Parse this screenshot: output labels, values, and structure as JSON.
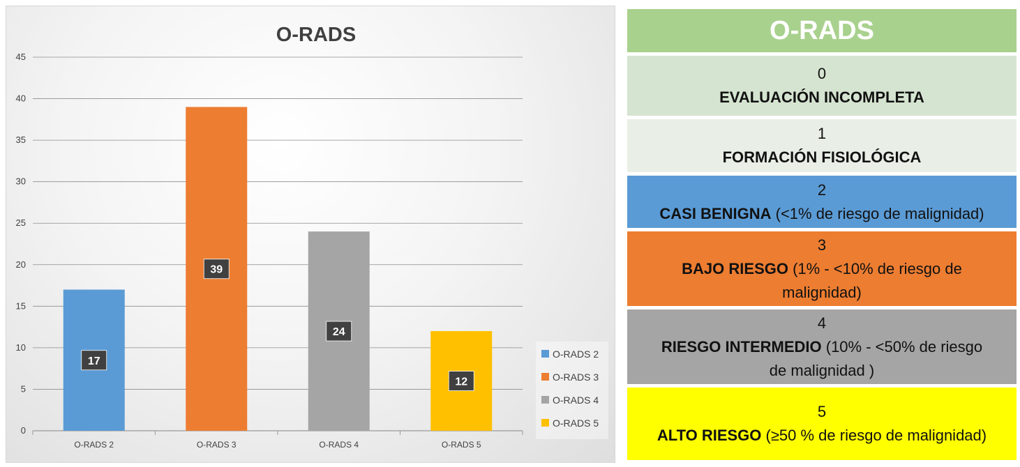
{
  "chart_data": {
    "type": "bar",
    "title": "O-RADS",
    "categories": [
      "O-RADS 2",
      "O-RADS 3",
      "O-RADS 4",
      "O-RADS 5"
    ],
    "values": [
      17,
      39,
      24,
      12
    ],
    "colors": [
      "#5b9bd5",
      "#ed7d31",
      "#a5a5a5",
      "#ffc000"
    ],
    "ylim": [
      0,
      45
    ],
    "yticks": [
      0,
      5,
      10,
      15,
      20,
      25,
      30,
      35,
      40,
      45
    ],
    "xlabel": "",
    "ylabel": "",
    "grid": true,
    "legend": {
      "position": "right",
      "entries": [
        "O-RADS 2",
        "O-RADS 3",
        "O-RADS 4",
        "O-RADS 5"
      ]
    }
  },
  "table": {
    "title": "O-RADS",
    "header_color": "#a9d18e",
    "rows": [
      {
        "number": "0",
        "label": "EVALUACIÓN INCOMPLETA",
        "detail": "",
        "detail_wrap": "",
        "color": "#d5e4d0"
      },
      {
        "number": "1",
        "label": "FORMACIÓN FISIOLÓGICA",
        "detail": "",
        "detail_wrap": "",
        "color": "#e9efe6"
      },
      {
        "number": "2",
        "label": "CASI BENIGNA",
        "detail": " (<1% de riesgo de malignidad)",
        "detail_wrap": "",
        "color": "#5b9bd5"
      },
      {
        "number": "3",
        "label": "BAJO RIESGO",
        "detail": " (1% - <10% de riesgo de",
        "detail_wrap": "malignidad)",
        "color": "#ed7d31"
      },
      {
        "number": "4",
        "label": "RIESGO INTERMEDIO",
        "detail": " (10% - <50% de riesgo",
        "detail_wrap": "de malignidad )",
        "color": "#a5a5a5"
      },
      {
        "number": "5",
        "label": "ALTO RIESGO",
        "detail": " (≥50 % de riesgo de malignidad)",
        "detail_wrap": "",
        "color": "#ffff00"
      }
    ]
  }
}
